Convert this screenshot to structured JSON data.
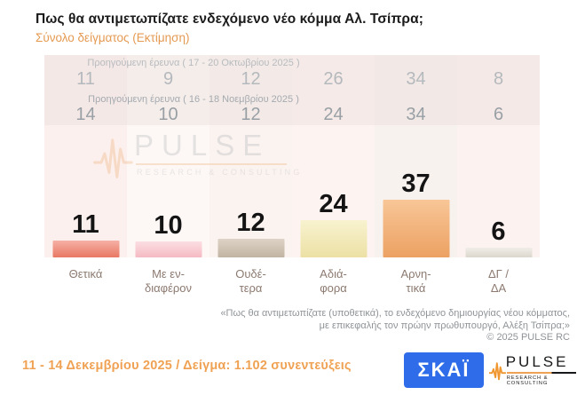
{
  "title": "Πως θα αντιμετωπίζατε ενδεχόμενο νέο κόμμα Αλ. Τσίπρα;",
  "subtitle": "Σύνολο δείγματος  (Εκτίμηση)",
  "chart_data": {
    "type": "bar",
    "categories": [
      "Θετικά",
      "Με ενδιαφέρον",
      "Ουδέτερα",
      "Αδιάφορα",
      "Αρνητικά",
      "ΔΓ / ΔΑ"
    ],
    "category_lines": [
      [
        "Θετικά",
        ""
      ],
      [
        "Με εν-",
        "διαφέρον"
      ],
      [
        "Ουδέ-",
        "τερα"
      ],
      [
        "Αδιά-",
        "φορα"
      ],
      [
        "Αρνη-",
        "τικά"
      ],
      [
        "ΔΓ /",
        "ΔΑ"
      ]
    ],
    "values": [
      11,
      10,
      12,
      24,
      37,
      6
    ],
    "ylim": [
      0,
      40
    ],
    "grid": false,
    "legend": false,
    "bar_colors": [
      {
        "top": "#f6b0a5",
        "bottom": "#e87763"
      },
      {
        "top": "#fbdee2",
        "bottom": "#f5bac3"
      },
      {
        "top": "#ddd3c6",
        "bottom": "#c2b4a2"
      },
      {
        "top": "#f8f3d0",
        "bottom": "#ece0a4"
      },
      {
        "top": "#f8c697",
        "bottom": "#eca162"
      },
      {
        "top": "#f0ede8",
        "bottom": "#dcd7cd"
      }
    ],
    "previous_surveys": [
      {
        "label": "Προηγούμενη έρευνα ( 17 - 20 Οκτωβρίου 2025 )",
        "values": [
          "11",
          "9",
          "12",
          "26",
          "34",
          "8"
        ]
      },
      {
        "label": "Προηγούμενη έρευνα ( 16 - 18 Νοεμβρίου 2025 )",
        "values": [
          "14",
          "10",
          "12",
          "24",
          "34",
          "6"
        ]
      }
    ]
  },
  "watermark": {
    "brand": "PULSE",
    "tagline": "RESEARCH & CONSULTING"
  },
  "footnote": {
    "line1": "«Πως θα αντιμετωπίζατε (υποθετικά), το ενδεχόμενο δημιουργίας νέου κόμματος,",
    "line2": "με επικεφαλής τον πρώην πρωθυπουργό, Αλέξη Τσίπρα;»",
    "line3": "©  2025  PULSE RC"
  },
  "footer": {
    "survey_info": "11 - 14 Δεκεμβρίου 2025  /  Δείγμα:  1.102 συνεντεύξεις",
    "skai_logo_text": "ΣΚΑΪ",
    "pulse_logo_text": "PULSE",
    "pulse_logo_tagline": "RESEARCH & CONSULTING"
  },
  "colors": {
    "accent_orange": "#e59a52",
    "title_black": "#1b1b1b",
    "skai_blue": "#2e6ce9",
    "pulse_orange": "#f0a254"
  }
}
